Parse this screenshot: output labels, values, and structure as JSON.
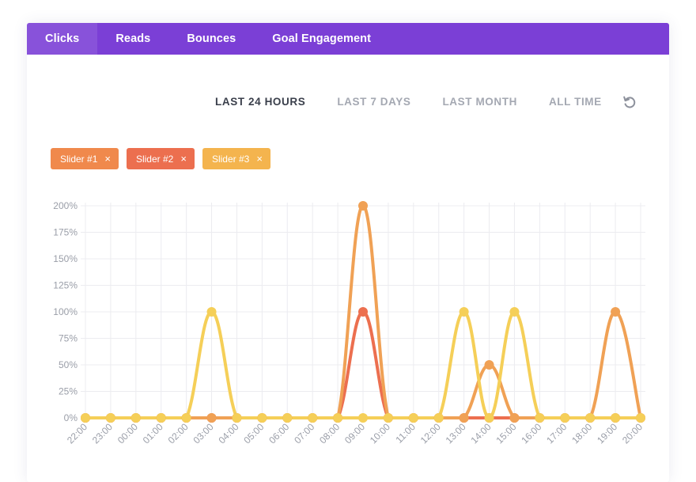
{
  "tabs": [
    {
      "label": "Clicks",
      "active": true
    },
    {
      "label": "Reads",
      "active": false
    },
    {
      "label": "Bounces",
      "active": false
    },
    {
      "label": "Goal Engagement",
      "active": false
    }
  ],
  "periods": [
    {
      "label": "LAST 24 HOURS",
      "active": true
    },
    {
      "label": "LAST 7 DAYS",
      "active": false
    },
    {
      "label": "LAST MONTH",
      "active": false
    },
    {
      "label": "ALL TIME",
      "active": false
    }
  ],
  "reset_icon": "refresh-icon",
  "filters": [
    {
      "label": "Slider #1",
      "color": "#f0894c",
      "remove_icon": "close-icon",
      "remove_glyph": "×"
    },
    {
      "label": "Slider #2",
      "color": "#ec6f4f",
      "remove_icon": "close-icon",
      "remove_glyph": "×"
    },
    {
      "label": "Slider #3",
      "color": "#f4b44e",
      "remove_icon": "close-icon",
      "remove_glyph": "×"
    }
  ],
  "colors": {
    "tab_bar": "#7b3fd6",
    "grid": "#ececf0",
    "tick_label": "#9a9ea8"
  },
  "chart_data": {
    "type": "line",
    "x": [
      "22:00",
      "23:00",
      "00:00",
      "01:00",
      "02:00",
      "03:00",
      "04:00",
      "05:00",
      "06:00",
      "07:00",
      "08:00",
      "09:00",
      "10:00",
      "11:00",
      "12:00",
      "13:00",
      "14:00",
      "15:00",
      "16:00",
      "17:00",
      "18:00",
      "19:00",
      "20:00"
    ],
    "yticks": [
      "0%",
      "25%",
      "50%",
      "75%",
      "100%",
      "125%",
      "150%",
      "175%",
      "200%"
    ],
    "ylim": [
      0,
      200
    ],
    "grid": true,
    "series": [
      {
        "name": "Slider #1",
        "color": "#ec6f4f",
        "values": [
          0,
          0,
          0,
          0,
          0,
          0,
          0,
          0,
          0,
          0,
          0,
          100,
          0,
          0,
          0,
          0,
          0,
          0,
          0,
          0,
          0,
          0,
          0
        ]
      },
      {
        "name": "Slider #2",
        "color": "#f0a155",
        "values": [
          0,
          0,
          0,
          0,
          0,
          0,
          0,
          0,
          0,
          0,
          0,
          200,
          0,
          0,
          0,
          0,
          50,
          0,
          0,
          0,
          0,
          100,
          0
        ]
      },
      {
        "name": "Slider #3",
        "color": "#f5cf58",
        "values": [
          0,
          0,
          0,
          0,
          0,
          100,
          0,
          0,
          0,
          0,
          0,
          0,
          0,
          0,
          0,
          100,
          0,
          100,
          0,
          0,
          0,
          0,
          0
        ]
      }
    ]
  }
}
